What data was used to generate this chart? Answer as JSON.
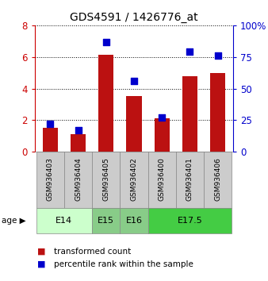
{
  "title": "GDS4591 / 1426776_at",
  "samples": [
    "GSM936403",
    "GSM936404",
    "GSM936405",
    "GSM936402",
    "GSM936400",
    "GSM936401",
    "GSM936406"
  ],
  "transformed_count": [
    1.5,
    1.1,
    6.15,
    3.5,
    2.1,
    4.8,
    5.0
  ],
  "percentile_rank": [
    22,
    17,
    87,
    56,
    27,
    79,
    76
  ],
  "bar_color": "#bb1111",
  "dot_color": "#0000cc",
  "left_ylim": [
    0,
    8
  ],
  "right_ylim": [
    0,
    100
  ],
  "left_yticks": [
    0,
    2,
    4,
    6,
    8
  ],
  "right_yticks": [
    0,
    25,
    50,
    75,
    100
  ],
  "right_yticklabels": [
    "0",
    "25",
    "50",
    "75",
    "100%"
  ],
  "left_tick_color": "#cc0000",
  "right_tick_color": "#0000cc",
  "age_group_data": [
    {
      "label": "E14",
      "xstart": 0,
      "xend": 2,
      "color": "#ccffcc"
    },
    {
      "label": "E15",
      "xstart": 2,
      "xend": 3,
      "color": "#88cc88"
    },
    {
      "label": "E16",
      "xstart": 3,
      "xend": 4,
      "color": "#88cc88"
    },
    {
      "label": "E17.5",
      "xstart": 4,
      "xend": 7,
      "color": "#44cc44"
    }
  ],
  "legend_items": [
    {
      "label": "transformed count",
      "color": "#bb1111"
    },
    {
      "label": "percentile rank within the sample",
      "color": "#0000cc"
    }
  ],
  "bar_width": 0.55,
  "dot_size": 32
}
